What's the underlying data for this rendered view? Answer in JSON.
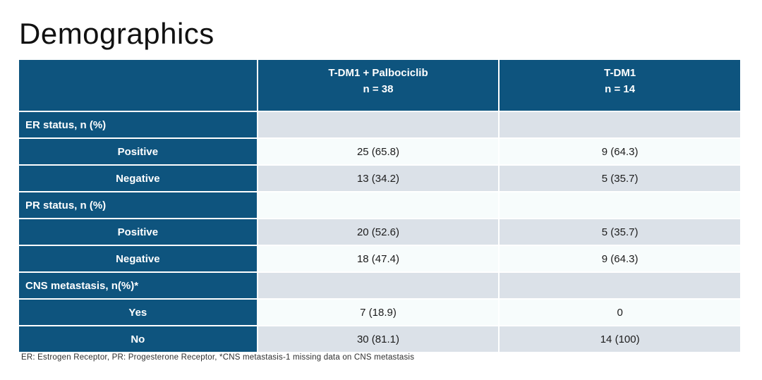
{
  "slide": {
    "title": "Demographics",
    "footnote": "ER: Estrogen Receptor, PR: Progesterone Receptor, *CNS metastasis-1 missing data on CNS metastasis"
  },
  "colors": {
    "header_blue": "#0e547e",
    "row_gray": "#dbe1e8",
    "row_light": "#f7fcfc",
    "header_text": "#ffffff",
    "value_text": "#1c1c1c"
  },
  "table": {
    "columns": [
      {
        "title": "",
        "subtitle": ""
      },
      {
        "title": "T-DM1 + Palbociclib",
        "subtitle": "n = 38"
      },
      {
        "title": "T-DM1",
        "subtitle": "n = 14"
      }
    ],
    "rows": [
      {
        "type": "section",
        "label": "ER status, n (%)",
        "col1": "",
        "col2": ""
      },
      {
        "type": "sub",
        "label": "Positive",
        "col1": "25 (65.8)",
        "col2": "9 (64.3)"
      },
      {
        "type": "sub",
        "label": "Negative",
        "col1": "13 (34.2)",
        "col2": "5 (35.7)"
      },
      {
        "type": "section",
        "label": "PR status, n (%)",
        "col1": "",
        "col2": ""
      },
      {
        "type": "sub",
        "label": "Positive",
        "col1": "20 (52.6)",
        "col2": "5 (35.7)"
      },
      {
        "type": "sub",
        "label": "Negative",
        "col1": "18 (47.4)",
        "col2": "9 (64.3)"
      },
      {
        "type": "section",
        "label": "CNS metastasis, n(%)*",
        "col1": "",
        "col2": ""
      },
      {
        "type": "sub",
        "label": "Yes",
        "col1": "7 (18.9)",
        "col2": "0"
      },
      {
        "type": "sub",
        "label": "No",
        "col1": "30 (81.1)",
        "col2": "14 (100)"
      }
    ]
  }
}
